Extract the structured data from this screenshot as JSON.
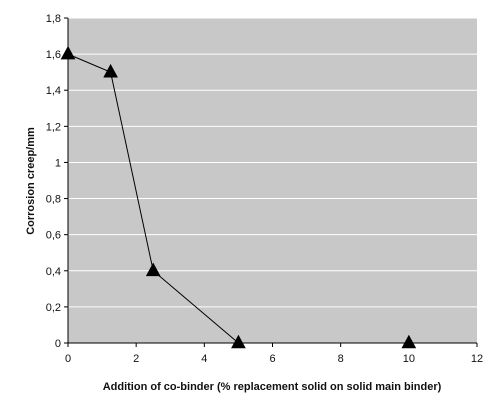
{
  "chart_data": {
    "type": "line",
    "title": "",
    "xlabel": "Addition of co-binder (% replacement solid on solid main binder)",
    "ylabel": "Corrosion creep/mm",
    "xlim": [
      0,
      12
    ],
    "ylim": [
      0,
      1.8
    ],
    "x_ticks": [
      "0",
      "2",
      "4",
      "6",
      "8",
      "10",
      "12"
    ],
    "y_ticks": [
      "0",
      "0,2",
      "0,4",
      "0,6",
      "0,8",
      "1",
      "1,2",
      "1,4",
      "1,6",
      "1,8"
    ],
    "grid": true,
    "legend": "none",
    "plot_background": "#c8c8c8",
    "gridline_color": "#ffffff",
    "line_color": "#000000",
    "marker": "triangle",
    "series": [
      {
        "x": [
          0,
          1.25,
          2.5,
          5,
          10
        ],
        "y": [
          1.6,
          1.5,
          0.4,
          0,
          0
        ]
      }
    ]
  }
}
